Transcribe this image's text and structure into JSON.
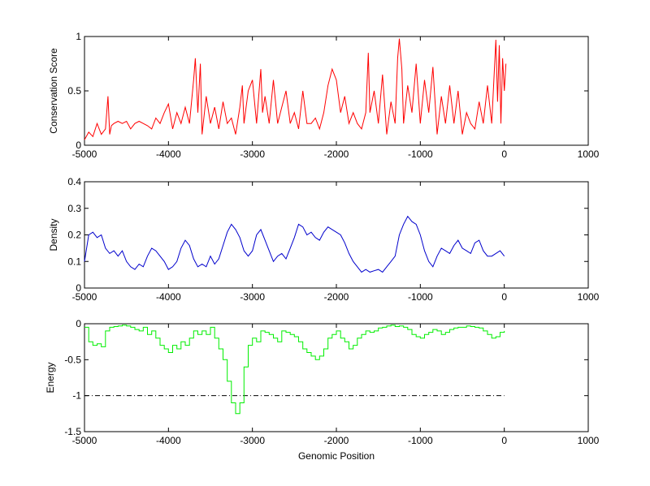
{
  "chart_data": [
    {
      "type": "line",
      "ylabel": "Conservation Score",
      "xlabel": "",
      "xlim": [
        -5000,
        1000
      ],
      "ylim": [
        0,
        1
      ],
      "xticks": [
        "-5000",
        "-4000",
        "-3000",
        "-2000",
        "-1000",
        "0",
        "1000"
      ],
      "yticks": [
        "0",
        "0.5",
        "1"
      ],
      "grid": false,
      "series": [
        {
          "color": "#ff0000",
          "x": [
            -5000,
            -4950,
            -4900,
            -4850,
            -4800,
            -4750,
            -4720,
            -4700,
            -4680,
            -4650,
            -4600,
            -4550,
            -4500,
            -4450,
            -4400,
            -4350,
            -4300,
            -4250,
            -4200,
            -4150,
            -4100,
            -4050,
            -4000,
            -3950,
            -3900,
            -3850,
            -3800,
            -3750,
            -3700,
            -3680,
            -3650,
            -3620,
            -3600,
            -3550,
            -3500,
            -3450,
            -3400,
            -3350,
            -3300,
            -3250,
            -3200,
            -3150,
            -3120,
            -3100,
            -3050,
            -3000,
            -2950,
            -2900,
            -2880,
            -2850,
            -2800,
            -2750,
            -2700,
            -2650,
            -2600,
            -2550,
            -2500,
            -2450,
            -2400,
            -2350,
            -2300,
            -2250,
            -2200,
            -2150,
            -2100,
            -2050,
            -2000,
            -1950,
            -1900,
            -1850,
            -1800,
            -1750,
            -1700,
            -1650,
            -1620,
            -1600,
            -1550,
            -1500,
            -1450,
            -1400,
            -1350,
            -1300,
            -1270,
            -1250,
            -1220,
            -1200,
            -1150,
            -1100,
            -1050,
            -1000,
            -950,
            -900,
            -850,
            -800,
            -750,
            -700,
            -650,
            -600,
            -550,
            -500,
            -450,
            -400,
            -350,
            -300,
            -250,
            -200,
            -150,
            -100,
            -80,
            -60,
            -40,
            -20,
            0,
            20
          ],
          "y": [
            0.05,
            0.12,
            0.08,
            0.2,
            0.1,
            0.15,
            0.45,
            0.1,
            0.18,
            0.2,
            0.22,
            0.2,
            0.22,
            0.15,
            0.2,
            0.22,
            0.2,
            0.18,
            0.15,
            0.25,
            0.2,
            0.3,
            0.38,
            0.15,
            0.3,
            0.2,
            0.35,
            0.2,
            0.6,
            0.8,
            0.3,
            0.75,
            0.1,
            0.45,
            0.2,
            0.35,
            0.15,
            0.4,
            0.2,
            0.25,
            0.1,
            0.35,
            0.55,
            0.2,
            0.5,
            0.6,
            0.2,
            0.7,
            0.3,
            0.45,
            0.2,
            0.6,
            0.2,
            0.35,
            0.5,
            0.2,
            0.3,
            0.15,
            0.5,
            0.2,
            0.2,
            0.25,
            0.15,
            0.3,
            0.55,
            0.7,
            0.6,
            0.3,
            0.45,
            0.2,
            0.3,
            0.2,
            0.15,
            0.3,
            0.85,
            0.3,
            0.5,
            0.2,
            0.65,
            0.1,
            0.4,
            0.2,
            0.8,
            0.98,
            0.7,
            0.2,
            0.55,
            0.3,
            0.75,
            0.2,
            0.6,
            0.3,
            0.72,
            0.1,
            0.45,
            0.2,
            0.55,
            0.2,
            0.5,
            0.1,
            0.3,
            0.2,
            0.15,
            0.4,
            0.2,
            0.55,
            0.2,
            0.97,
            0.4,
            0.92,
            0.2,
            0.8,
            0.5,
            0.75
          ]
        }
      ]
    },
    {
      "type": "line",
      "ylabel": "Density",
      "xlabel": "",
      "xlim": [
        -5000,
        1000
      ],
      "ylim": [
        0,
        0.4
      ],
      "xticks": [
        "-5000",
        "-4000",
        "-3000",
        "-2000",
        "-1000",
        "0",
        "1000"
      ],
      "yticks": [
        "0",
        "0.1",
        "0.2",
        "0.3",
        "0.4"
      ],
      "grid": false,
      "series": [
        {
          "color": "#0000cc",
          "x": [
            -5000,
            -4950,
            -4900,
            -4850,
            -4800,
            -4750,
            -4700,
            -4650,
            -4600,
            -4550,
            -4500,
            -4450,
            -4400,
            -4350,
            -4300,
            -4250,
            -4200,
            -4150,
            -4100,
            -4050,
            -4000,
            -3950,
            -3900,
            -3850,
            -3800,
            -3750,
            -3700,
            -3650,
            -3600,
            -3550,
            -3500,
            -3450,
            -3400,
            -3350,
            -3300,
            -3250,
            -3200,
            -3150,
            -3100,
            -3050,
            -3000,
            -2950,
            -2900,
            -2850,
            -2800,
            -2750,
            -2700,
            -2650,
            -2600,
            -2550,
            -2500,
            -2450,
            -2400,
            -2350,
            -2300,
            -2250,
            -2200,
            -2150,
            -2100,
            -2050,
            -2000,
            -1950,
            -1900,
            -1850,
            -1800,
            -1750,
            -1700,
            -1650,
            -1600,
            -1550,
            -1500,
            -1450,
            -1400,
            -1350,
            -1300,
            -1250,
            -1200,
            -1150,
            -1100,
            -1050,
            -1000,
            -950,
            -900,
            -850,
            -800,
            -750,
            -700,
            -650,
            -600,
            -550,
            -500,
            -450,
            -400,
            -350,
            -300,
            -250,
            -200,
            -150,
            -100,
            -50,
            0
          ],
          "y": [
            0.1,
            0.2,
            0.21,
            0.19,
            0.2,
            0.15,
            0.13,
            0.14,
            0.12,
            0.14,
            0.1,
            0.08,
            0.07,
            0.09,
            0.08,
            0.12,
            0.15,
            0.14,
            0.12,
            0.1,
            0.07,
            0.08,
            0.1,
            0.15,
            0.18,
            0.16,
            0.11,
            0.08,
            0.09,
            0.08,
            0.12,
            0.09,
            0.11,
            0.16,
            0.21,
            0.24,
            0.22,
            0.19,
            0.14,
            0.12,
            0.14,
            0.2,
            0.22,
            0.18,
            0.14,
            0.1,
            0.12,
            0.13,
            0.11,
            0.15,
            0.19,
            0.24,
            0.23,
            0.2,
            0.21,
            0.19,
            0.18,
            0.21,
            0.23,
            0.22,
            0.21,
            0.2,
            0.17,
            0.13,
            0.1,
            0.08,
            0.06,
            0.07,
            0.06,
            0.065,
            0.07,
            0.06,
            0.08,
            0.1,
            0.12,
            0.2,
            0.24,
            0.27,
            0.25,
            0.24,
            0.2,
            0.14,
            0.1,
            0.08,
            0.12,
            0.15,
            0.14,
            0.13,
            0.16,
            0.18,
            0.15,
            0.14,
            0.13,
            0.17,
            0.18,
            0.14,
            0.12,
            0.12,
            0.13,
            0.14,
            0.12
          ]
        }
      ]
    },
    {
      "type": "line",
      "ylabel": "Energy",
      "xlabel": "Genomic Position",
      "xlim": [
        -5000,
        1000
      ],
      "ylim": [
        -1.5,
        0
      ],
      "xticks": [
        "-5000",
        "-4000",
        "-3000",
        "-2000",
        "-1000",
        "0",
        "1000"
      ],
      "yticks": [
        "-1.5",
        "-1",
        "-0.5",
        "0"
      ],
      "grid": false,
      "series": [
        {
          "color": "#00ee00",
          "style": "step",
          "x": [
            -5000,
            -4950,
            -4900,
            -4850,
            -4800,
            -4750,
            -4700,
            -4650,
            -4600,
            -4550,
            -4500,
            -4450,
            -4400,
            -4350,
            -4300,
            -4250,
            -4200,
            -4150,
            -4100,
            -4050,
            -4000,
            -3950,
            -3900,
            -3850,
            -3800,
            -3750,
            -3700,
            -3650,
            -3600,
            -3550,
            -3500,
            -3450,
            -3400,
            -3350,
            -3300,
            -3250,
            -3200,
            -3150,
            -3100,
            -3050,
            -3000,
            -2950,
            -2900,
            -2850,
            -2800,
            -2750,
            -2700,
            -2650,
            -2600,
            -2550,
            -2500,
            -2450,
            -2400,
            -2350,
            -2300,
            -2250,
            -2200,
            -2150,
            -2100,
            -2050,
            -2000,
            -1950,
            -1900,
            -1850,
            -1800,
            -1750,
            -1700,
            -1650,
            -1600,
            -1550,
            -1500,
            -1450,
            -1400,
            -1350,
            -1300,
            -1250,
            -1200,
            -1150,
            -1100,
            -1050,
            -1000,
            -950,
            -900,
            -850,
            -800,
            -750,
            -700,
            -650,
            -600,
            -550,
            -500,
            -450,
            -400,
            -350,
            -300,
            -250,
            -200,
            -150,
            -100,
            -50,
            0
          ],
          "y": [
            -0.05,
            -0.25,
            -0.3,
            -0.28,
            -0.32,
            -0.1,
            -0.05,
            -0.04,
            -0.03,
            -0.02,
            -0.03,
            -0.05,
            -0.08,
            -0.1,
            -0.05,
            -0.15,
            -0.1,
            -0.2,
            -0.3,
            -0.35,
            -0.4,
            -0.3,
            -0.35,
            -0.25,
            -0.3,
            -0.2,
            -0.1,
            -0.15,
            -0.1,
            -0.15,
            -0.05,
            -0.2,
            -0.35,
            -0.5,
            -0.8,
            -1.1,
            -1.25,
            -1.1,
            -0.6,
            -0.3,
            -0.2,
            -0.25,
            -0.1,
            -0.12,
            -0.15,
            -0.2,
            -0.25,
            -0.1,
            -0.12,
            -0.15,
            -0.18,
            -0.25,
            -0.35,
            -0.4,
            -0.45,
            -0.5,
            -0.45,
            -0.35,
            -0.2,
            -0.15,
            -0.1,
            -0.2,
            -0.25,
            -0.35,
            -0.3,
            -0.2,
            -0.15,
            -0.1,
            -0.12,
            -0.1,
            -0.06,
            -0.05,
            -0.03,
            -0.02,
            -0.04,
            -0.03,
            -0.05,
            -0.08,
            -0.15,
            -0.18,
            -0.2,
            -0.15,
            -0.12,
            -0.08,
            -0.1,
            -0.15,
            -0.12,
            -0.08,
            -0.06,
            -0.05,
            -0.05,
            -0.03,
            -0.04,
            -0.05,
            -0.06,
            -0.1,
            -0.15,
            -0.2,
            -0.18,
            -0.12,
            -0.1
          ]
        }
      ],
      "reference_lines": [
        {
          "y": -1,
          "x_from": -5000,
          "x_to": 0,
          "style": "dash-dot",
          "color": "#000000"
        }
      ]
    }
  ]
}
